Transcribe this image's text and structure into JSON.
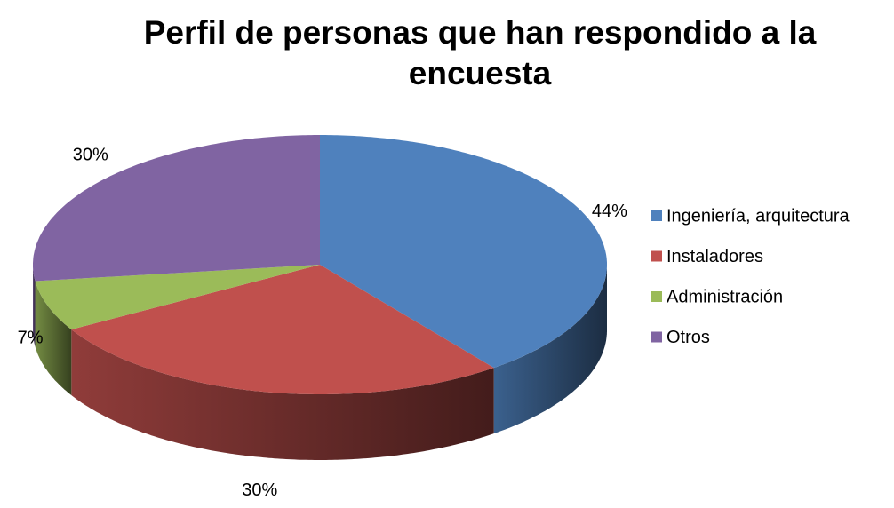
{
  "chart_data": {
    "type": "pie",
    "title": "Perfil de personas que han respondido a la encuesta",
    "categories": [
      "Ingeniería, arquitectura",
      "Instaladores",
      "Administración",
      "Otros"
    ],
    "values": [
      44,
      30,
      7,
      30
    ],
    "value_labels": [
      "44%",
      "30%",
      "7%",
      "30%"
    ],
    "colors": [
      "#4f81bd",
      "#c0504d",
      "#9bbb59",
      "#8064a2"
    ],
    "legend": "right"
  }
}
